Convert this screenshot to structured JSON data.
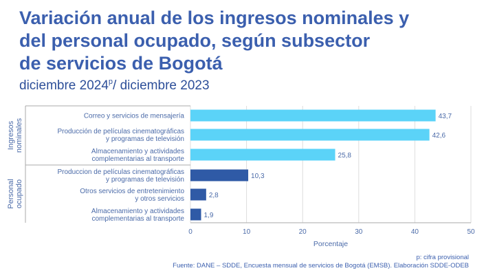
{
  "header": {
    "title_lines": [
      "Variación anual de los ingresos nominales y",
      "del personal ocupado, según subsector",
      "de servicios de Bogotá"
    ],
    "subtitle_pre": "diciembre 2024",
    "subtitle_sup": "p",
    "subtitle_post": "/ diciembre 2023"
  },
  "chart_data": {
    "type": "bar",
    "orientation": "horizontal",
    "xlabel": "Porcentaje",
    "xlim": [
      0,
      50
    ],
    "xticks": [
      0,
      10,
      20,
      30,
      40,
      50
    ],
    "grid": true,
    "groups": [
      {
        "label": [
          "Ingresos",
          "nominales"
        ],
        "color": "#5bd3f8",
        "items": [
          {
            "label": [
              "Correo y servicios de mensajería"
            ],
            "value": 43.7,
            "value_label": "43,7"
          },
          {
            "label": [
              "Producción de películas cinematográficas",
              "y programas de televisión"
            ],
            "value": 42.6,
            "value_label": "42,6"
          },
          {
            "label": [
              "Almacenamiento y actividades",
              "complementarias al transporte"
            ],
            "value": 25.8,
            "value_label": "25,8"
          }
        ]
      },
      {
        "label": [
          "Personal",
          "ocupado"
        ],
        "color": "#2f5aa6",
        "items": [
          {
            "label": [
              "Produccion de películas cinematográficas",
              "y programas de televisión"
            ],
            "value": 10.3,
            "value_label": "10,3"
          },
          {
            "label": [
              "Otros servicios de entretenimiento",
              "y otros servicios"
            ],
            "value": 2.8,
            "value_label": "2,8"
          },
          {
            "label": [
              "Almacenamiento y actividades",
              "complementarias al transporte"
            ],
            "value": 1.9,
            "value_label": "1,9"
          }
        ]
      }
    ]
  },
  "footnotes": {
    "provisional": "p: cifra provisional",
    "source": "Fuente: DANE – SDDE, Encuesta mensual de servicios de Bogotá (EMSB). Elaboración SDDE-ODEB"
  },
  "colors": {
    "title": "#3b5fae",
    "text": "#4a6aa8",
    "grid": "#dddddd",
    "axis": "#aaaaaa"
  }
}
